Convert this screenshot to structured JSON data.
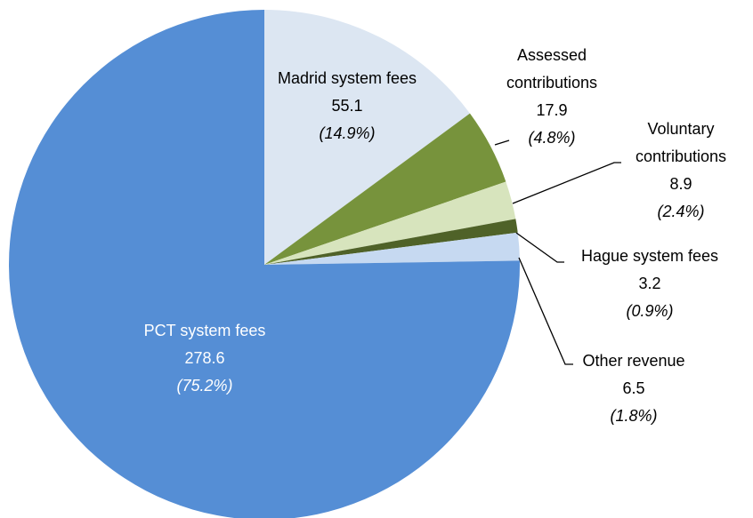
{
  "chart_data": {
    "type": "pie",
    "categories": [
      "Madrid system fees",
      "Assessed contributions",
      "Voluntary contributions",
      "Hague system fees",
      "Other revenue",
      "PCT system fees"
    ],
    "values": [
      55.1,
      17.9,
      8.9,
      3.2,
      6.5,
      278.6
    ],
    "percentage_labels": [
      "(14.9%)",
      "(4.8%)",
      "(2.4%)",
      "(0.9%)",
      "(1.8%)",
      "(75.2%)"
    ],
    "colors": [
      "#dce6f2",
      "#77933c",
      "#d7e4bd",
      "#4f6228",
      "#c6d9f1",
      "#558ed5"
    ]
  }
}
